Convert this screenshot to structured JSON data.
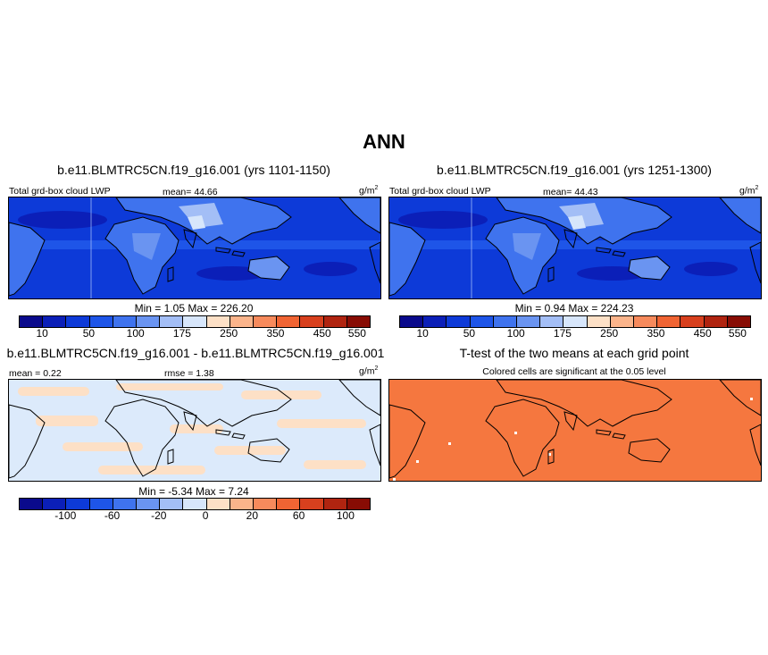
{
  "main_title": "ANN",
  "panel1": {
    "title": "b.e11.BLMTRC5CN.f19_g16.001 (yrs 1101-1150)",
    "field": "Total grd-box cloud LWP",
    "mean": "mean=  44.66",
    "units": "g/m",
    "units_exp": "2",
    "minmax": "Min =   1.05 Max = 226.20"
  },
  "panel2": {
    "title": "b.e11.BLMTRC5CN.f19_g16.001 (yrs 1251-1300)",
    "field": "Total grd-box cloud LWP",
    "mean": "mean=  44.43",
    "units": "g/m",
    "units_exp": "2",
    "minmax": "Min =   0.94 Max = 224.23"
  },
  "panel3": {
    "title": "b.e11.BLMTRC5CN.f19_g16.001 - b.e11.BLMTRC5CN.f19_g16.001",
    "mean": "mean =   0.22",
    "rmse": "rmse =   1.38",
    "units": "g/m",
    "units_exp": "2",
    "minmax": "Min =  -5.34 Max =   7.24"
  },
  "panel4": {
    "title": "T-test of the two means at each grid point",
    "subtitle": "Colored cells are significant at the 0.05 level"
  },
  "colorbar_abs": {
    "colors": [
      "#0a0a8c",
      "#0b1fb8",
      "#0d3ad8",
      "#1e55e8",
      "#3f73ee",
      "#6a94f1",
      "#a3bef6",
      "#d7e6fb",
      "#fde0c6",
      "#fbb48b",
      "#f78a5c",
      "#f06433",
      "#d8401e",
      "#b02410",
      "#880c04"
    ],
    "labels": [
      "10",
      "50",
      "100",
      "175",
      "250",
      "350",
      "450",
      "550"
    ]
  },
  "colorbar_diff": {
    "colors": [
      "#0a0a8c",
      "#0b1fb8",
      "#0d3ad8",
      "#1e55e8",
      "#3f73ee",
      "#6a94f1",
      "#a3bef6",
      "#d7e6fb",
      "#fde0c6",
      "#fbb48b",
      "#f78a5c",
      "#f06433",
      "#d8401e",
      "#b02410",
      "#880c04"
    ],
    "labels": [
      "-100",
      "-60",
      "-20",
      "0",
      "20",
      "60",
      "100"
    ]
  },
  "map_colors": {
    "ocean_base": "#0d3ad8",
    "deep": "#0b1fb8",
    "mid": "#1e55e8",
    "light": "#3f73ee",
    "lighter": "#6a94f1",
    "pale": "#a3bef6",
    "palest": "#d7e6fb",
    "diff_pos": "#fde0c6",
    "diff_neg": "#dceafb",
    "ttest": "#f5773f"
  }
}
